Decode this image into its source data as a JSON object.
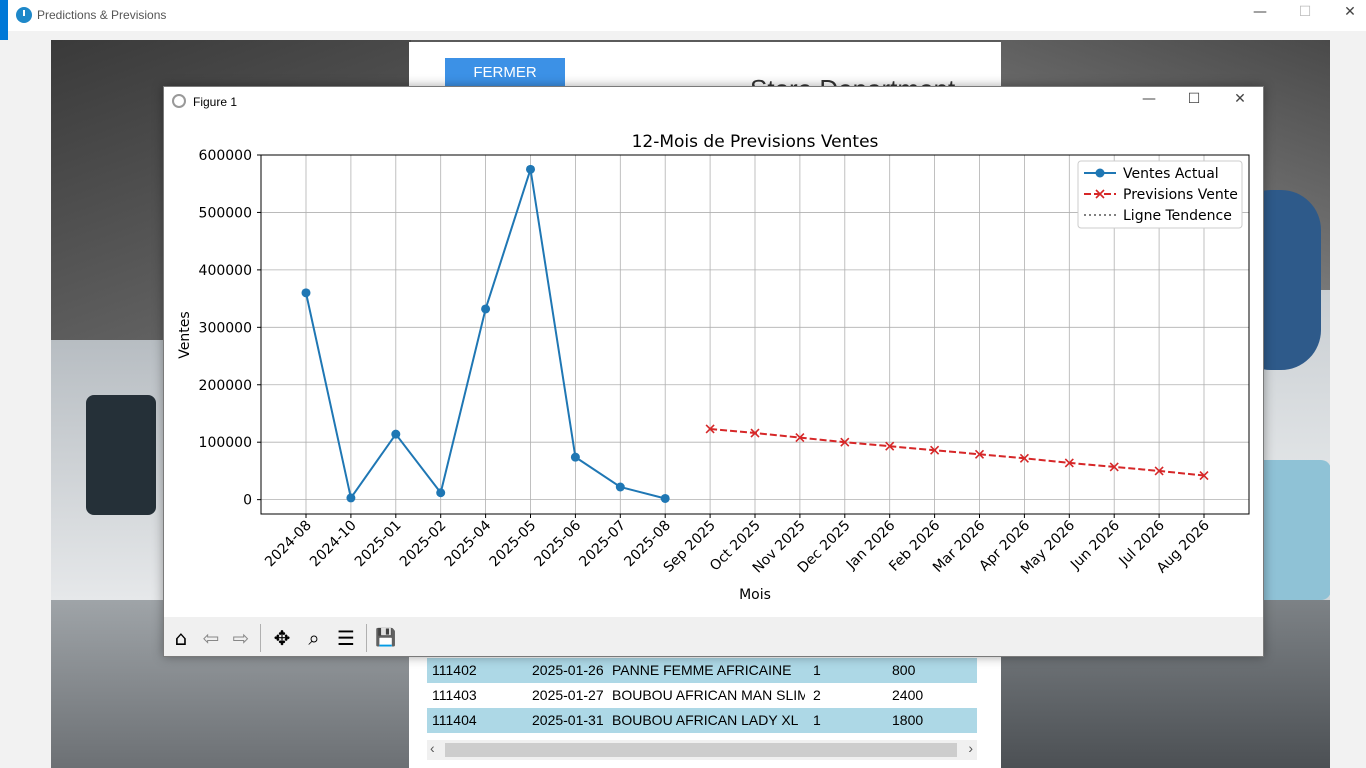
{
  "app": {
    "title": "Predictions & Previsions",
    "minimize": "—",
    "maximize": "☐",
    "close": "✕"
  },
  "background": {
    "fermer_label": "FERMER",
    "store_title": "Store Department"
  },
  "table": {
    "rows": [
      {
        "id": "111402",
        "date": "2025-01-26",
        "product": "PANNE FEMME AFRICAINE",
        "qty": "1",
        "amount": "800",
        "highlight": true
      },
      {
        "id": "111403",
        "date": "2025-01-27",
        "product": "BOUBOU AFRICAN MAN SLIM",
        "qty": "2",
        "amount": "2400",
        "highlight": false
      },
      {
        "id": "111404",
        "date": "2025-01-31",
        "product": "BOUBOU AFRICAN LADY XL",
        "qty": "1",
        "amount": "1800",
        "highlight": true
      }
    ],
    "scroll_left": "‹",
    "scroll_right": "›"
  },
  "figure": {
    "title": "Figure 1",
    "minimize": "—",
    "maximize": "☐",
    "close": "✕",
    "toolbar": {
      "home": "⌂",
      "back": "⇦",
      "forward": "⇨",
      "pan": "✥",
      "zoom": "⌕",
      "configure": "☰",
      "save": "💾"
    }
  },
  "chart_data": {
    "type": "line",
    "title": "12-Mois de Previsions Ventes",
    "xlabel": "Mois",
    "ylabel": "Ventes",
    "ylim": [
      -25000,
      600000
    ],
    "yticks": [
      0,
      100000,
      200000,
      300000,
      400000,
      500000,
      600000
    ],
    "grid": true,
    "legend_position": "top-right",
    "categories": [
      "2024-08",
      "2024-10",
      "2025-01",
      "2025-02",
      "2025-04",
      "2025-05",
      "2025-06",
      "2025-07",
      "2025-08",
      "Sep 2025",
      "Oct 2025",
      "Nov 2025",
      "Dec 2025",
      "Jan 2026",
      "Feb 2026",
      "Mar 2026",
      "Apr 2026",
      "May 2026",
      "Jun 2026",
      "Jul 2026",
      "Aug 2026"
    ],
    "series": [
      {
        "name": "Ventes Actual",
        "color": "#1f77b4",
        "style": "solid",
        "marker": "o",
        "x": [
          "2024-08",
          "2024-10",
          "2025-01",
          "2025-02",
          "2025-04",
          "2025-05",
          "2025-06",
          "2025-07",
          "2025-08"
        ],
        "values": [
          360000,
          3000,
          114000,
          12000,
          332000,
          575000,
          74000,
          22000,
          2000
        ]
      },
      {
        "name": "Previsions Vente",
        "color": "#d62728",
        "style": "dashed",
        "marker": "x",
        "x": [
          "Sep 2025",
          "Oct 2025",
          "Nov 2025",
          "Dec 2025",
          "Jan 2026",
          "Feb 2026",
          "Mar 2026",
          "Apr 2026",
          "May 2026",
          "Jun 2026",
          "Jul 2026",
          "Aug 2026"
        ],
        "values": [
          123000,
          116000,
          108000,
          100000,
          93000,
          86000,
          79000,
          72000,
          64000,
          57000,
          50000,
          42000
        ]
      },
      {
        "name": "Ligne Tendence",
        "color": "#808080",
        "style": "dotted",
        "marker": "none",
        "x": [],
        "values": []
      }
    ]
  }
}
